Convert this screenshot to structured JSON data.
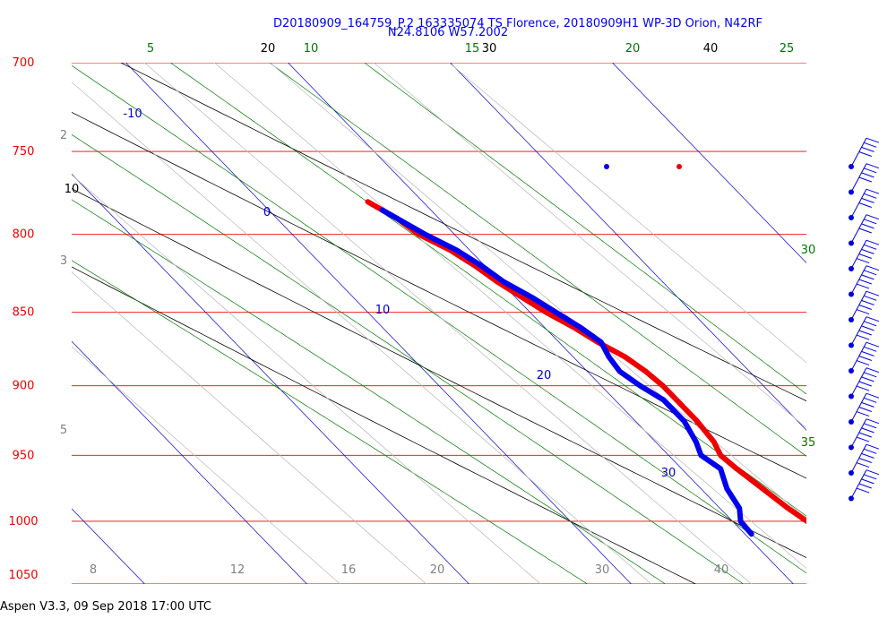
{
  "header": {
    "title_line1": "D20180909_164759_P.2 163335074 TS Florence, 20180909H1 WP-3D Orion, N42RF",
    "title_line2": "N24.8106 W57.2002"
  },
  "footer": {
    "text": "Aspen V3.3, 09 Sep 2018  17:00 UTC"
  },
  "colors": {
    "pressure": "#ee0000",
    "isotherm": "#0000cc",
    "dry_adiabat": "#000000",
    "moist_adiabat": "#007700",
    "mixing_ratio": "#808080",
    "temperature": "#ee0000",
    "dewpoint": "#0000ee"
  },
  "chart_data": {
    "type": "skew-t",
    "p_range": [
      700,
      1050
    ],
    "pressure_levels": [
      700,
      750,
      800,
      850,
      900,
      950,
      1000,
      1050
    ],
    "pressure_labels": [
      "700",
      "750",
      "800",
      "850",
      "900",
      "950",
      "1000",
      "1050"
    ],
    "isotherms": [
      -20,
      -10,
      0,
      10,
      20,
      30,
      40
    ],
    "isotherm_labels": [
      "-10",
      "0",
      "10",
      "20",
      "30"
    ],
    "dry_adiabats": [
      10,
      20,
      30,
      40
    ],
    "dry_adiabat_labels": [
      "10",
      "20",
      "30",
      "40"
    ],
    "moist_adiabats": [
      5,
      10,
      15,
      20,
      25,
      30,
      35
    ],
    "moist_adiabat_labels": [
      "5",
      "10",
      "15",
      "20",
      "25",
      "30",
      "35"
    ],
    "mixing_ratios": [
      2,
      3,
      5,
      8,
      12,
      16,
      20,
      30,
      40
    ],
    "mixing_ratio_labels": [
      "2",
      "3",
      "5",
      "8",
      "12",
      "16",
      "20",
      "30",
      "40"
    ],
    "temperature": {
      "p": [
        1010,
        1000,
        990,
        975,
        960,
        950,
        940,
        925,
        910,
        900,
        890,
        880,
        870,
        860,
        850,
        840,
        830,
        820,
        810,
        800,
        790,
        785,
        780
      ],
      "t": [
        25.0,
        24.6,
        24.2,
        23.8,
        23.4,
        23.2,
        23.6,
        23.8,
        23.8,
        23.8,
        23.6,
        23.2,
        22.4,
        21.8,
        21.0,
        20.4,
        19.8,
        19.4,
        18.8,
        17.8,
        17.4,
        17.0,
        16.6
      ]
    },
    "dewpoint": {
      "p": [
        1010,
        1000,
        990,
        975,
        960,
        950,
        940,
        925,
        910,
        900,
        890,
        880,
        870,
        860,
        850,
        840,
        830,
        820,
        810,
        800,
        790,
        785
      ],
      "td": [
        20.4,
        20.5,
        21.2,
        21.6,
        22.4,
        22.0,
        22.5,
        23.0,
        23.0,
        22.4,
        22.0,
        22.2,
        22.6,
        22.2,
        21.6,
        21.0,
        20.2,
        19.8,
        19.2,
        18.2,
        17.4,
        17.0
      ]
    },
    "wind_barbs": {
      "p": [
        1020,
        1000,
        980,
        960,
        940,
        920,
        900,
        880,
        860,
        840,
        820,
        800,
        780,
        760
      ],
      "speed_kt": [
        35,
        40,
        40,
        40,
        45,
        45,
        45,
        45,
        45,
        45,
        45,
        45,
        45,
        45
      ]
    }
  }
}
